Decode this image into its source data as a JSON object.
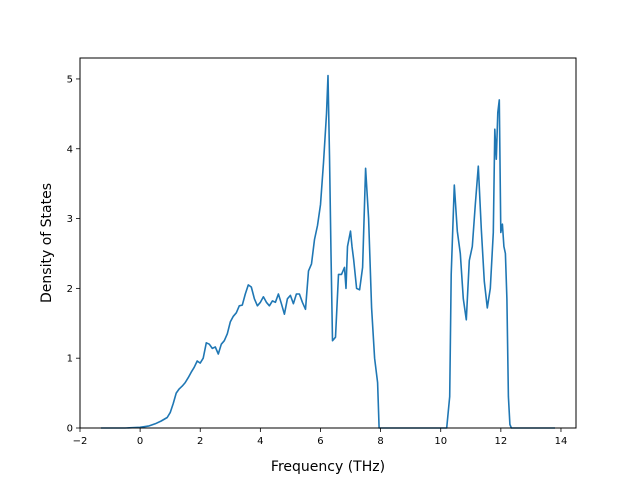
{
  "chart_data": {
    "type": "line",
    "title": "",
    "xlabel": "Frequency (THz)",
    "ylabel": "Density of States",
    "xlim": [
      -2,
      14.5
    ],
    "ylim": [
      0,
      5.3
    ],
    "xticks": [
      -2,
      0,
      2,
      4,
      6,
      8,
      10,
      12,
      14
    ],
    "yticks": [
      0,
      1,
      2,
      3,
      4,
      5
    ],
    "grid": false,
    "line_color": "#1f77b4",
    "series": [
      {
        "name": "",
        "x": [
          -1.3,
          -0.5,
          0,
          0.3,
          0.5,
          0.7,
          0.9,
          1.0,
          1.1,
          1.2,
          1.3,
          1.4,
          1.5,
          1.6,
          1.7,
          1.8,
          1.9,
          2.0,
          2.1,
          2.2,
          2.3,
          2.4,
          2.5,
          2.6,
          2.7,
          2.8,
          2.9,
          3.0,
          3.1,
          3.2,
          3.3,
          3.4,
          3.5,
          3.6,
          3.7,
          3.8,
          3.9,
          4.0,
          4.1,
          4.2,
          4.3,
          4.4,
          4.5,
          4.6,
          4.7,
          4.8,
          4.9,
          5.0,
          5.1,
          5.2,
          5.3,
          5.4,
          5.5,
          5.6,
          5.7,
          5.8,
          5.9,
          6.0,
          6.1,
          6.2,
          6.25,
          6.3,
          6.35,
          6.4,
          6.5,
          6.6,
          6.7,
          6.8,
          6.85,
          6.9,
          7.0,
          7.05,
          7.1,
          7.2,
          7.3,
          7.4,
          7.5,
          7.6,
          7.7,
          7.8,
          7.9,
          7.95,
          8.05,
          8.5,
          9.5,
          10.2,
          10.3,
          10.35,
          10.45,
          10.55,
          10.65,
          10.75,
          10.85,
          10.95,
          11.05,
          11.15,
          11.25,
          11.35,
          11.45,
          11.55,
          11.65,
          11.75,
          11.8,
          11.85,
          11.9,
          11.95,
          12.0,
          12.05,
          12.1,
          12.15,
          12.2,
          12.25,
          12.3,
          12.35,
          12.4,
          12.45,
          12.6,
          13.8
        ],
        "values": [
          0,
          0,
          0.01,
          0.03,
          0.06,
          0.1,
          0.15,
          0.22,
          0.35,
          0.5,
          0.56,
          0.6,
          0.65,
          0.72,
          0.8,
          0.87,
          0.96,
          0.93,
          1.0,
          1.22,
          1.2,
          1.14,
          1.16,
          1.06,
          1.2,
          1.25,
          1.35,
          1.52,
          1.6,
          1.65,
          1.75,
          1.76,
          1.92,
          2.05,
          2.02,
          1.85,
          1.75,
          1.8,
          1.88,
          1.8,
          1.75,
          1.82,
          1.8,
          1.92,
          1.78,
          1.63,
          1.85,
          1.9,
          1.78,
          1.92,
          1.92,
          1.8,
          1.7,
          2.25,
          2.35,
          2.7,
          2.9,
          3.2,
          3.8,
          4.5,
          5.05,
          3.9,
          2.5,
          1.25,
          1.3,
          2.2,
          2.2,
          2.3,
          2.0,
          2.6,
          2.82,
          2.6,
          2.42,
          2.0,
          1.98,
          2.3,
          3.72,
          3.0,
          1.72,
          1.0,
          0.65,
          0.0,
          0.0,
          0.0,
          0.0,
          0.0,
          0.45,
          2.2,
          3.48,
          2.82,
          2.5,
          1.85,
          1.55,
          2.4,
          2.6,
          3.2,
          3.75,
          2.85,
          2.1,
          1.72,
          2.0,
          2.8,
          4.28,
          3.85,
          4.52,
          4.7,
          2.8,
          2.92,
          2.6,
          2.5,
          1.85,
          0.45,
          0.05,
          0,
          0,
          0,
          0,
          0
        ]
      }
    ]
  }
}
